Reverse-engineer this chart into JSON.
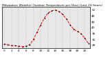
{
  "title": "Milwaukee Weather Outdoor Temperature per Hour (Last 24 Hours)",
  "hours": [
    0,
    1,
    2,
    3,
    4,
    5,
    6,
    7,
    8,
    9,
    10,
    11,
    12,
    13,
    14,
    15,
    16,
    17,
    18,
    19,
    20,
    21,
    22,
    23
  ],
  "temps": [
    29.0,
    28.5,
    28.0,
    27.8,
    27.5,
    27.2,
    27.5,
    28.5,
    32.0,
    37.0,
    42.0,
    46.5,
    50.0,
    51.5,
    52.0,
    51.0,
    49.0,
    46.0,
    42.0,
    39.0,
    37.5,
    36.0,
    33.0,
    29.5
  ],
  "line_color": "#ff0000",
  "marker_color": "#000000",
  "grid_color": "#aaaaaa",
  "bg_color": "#ffffff",
  "plot_bg": "#e8e8e8",
  "ylim": [
    26,
    54
  ],
  "ytick_values": [
    28,
    32,
    36,
    40,
    44,
    48,
    52
  ],
  "xtick_values": [
    0,
    2,
    4,
    6,
    8,
    10,
    12,
    14,
    16,
    18,
    20,
    22
  ],
  "tick_fontsize": 3.0,
  "title_fontsize": 3.2,
  "linewidth": 0.7,
  "markersize": 1.8
}
